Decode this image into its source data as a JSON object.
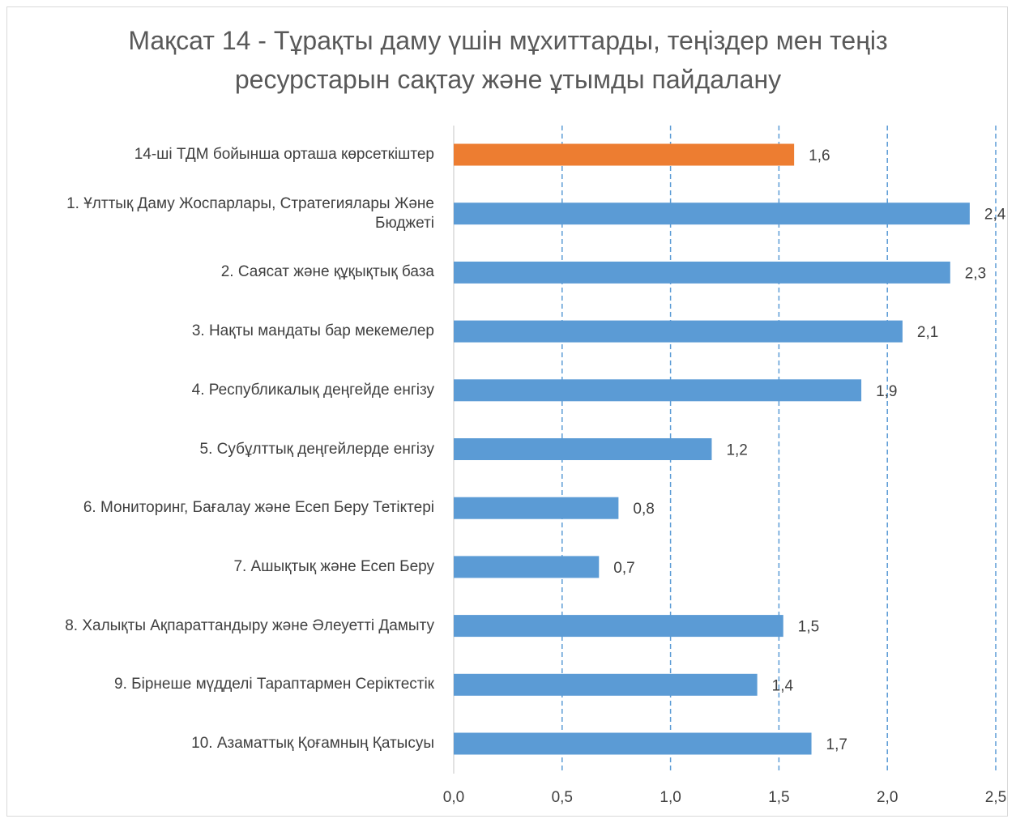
{
  "chart_data": {
    "type": "bar",
    "orientation": "horizontal",
    "title": "Мақсат 14 - Тұрақты даму үшін мұхиттарды, теңіздер мен теңіз ресурстарын сақтау және ұтымды пайдалану",
    "categories": [
      "14-ші ТДМ бойынша орташа көрсеткіштер",
      "1. Ұлттық Даму Жоспарлары, Стратегиялары Және Бюджеті",
      "2. Саясат және құқықтық база",
      "3. Нақты мандаты бар мекемелер",
      "4. Республикалық деңгейде енгізу",
      "5. Субұлттық деңгейлерде енгізу",
      "6. Мониторинг, Бағалау және Есеп Беру Тетіктері",
      "7. Ашықтық және Есеп Беру",
      "8. Халықты Ақпараттандыру және Әлеуетті Дамыту",
      "9. Бірнеше мүдделі Тараптармен Серіктестік",
      "10. Азаматтық Қоғамның Қатысуы"
    ],
    "values": [
      1.57,
      2.38,
      2.29,
      2.07,
      1.88,
      1.19,
      0.76,
      0.67,
      1.52,
      1.4,
      1.65
    ],
    "value_labels": [
      "1,6",
      "2,4",
      "2,3",
      "2,1",
      "1,9",
      "1,2",
      "0,8",
      "0,7",
      "1,5",
      "1,4",
      "1,7"
    ],
    "colors": [
      "#ed7d31",
      "#5b9bd5",
      "#5b9bd5",
      "#5b9bd5",
      "#5b9bd5",
      "#5b9bd5",
      "#5b9bd5",
      "#5b9bd5",
      "#5b9bd5",
      "#5b9bd5",
      "#5b9bd5"
    ],
    "xlim": [
      0,
      2.5
    ],
    "xticks": [
      {
        "value": 0,
        "label": "0,0"
      },
      {
        "value": 0.5,
        "label": "0,5"
      },
      {
        "value": 1,
        "label": "1,0"
      },
      {
        "value": 1.5,
        "label": "1,5"
      },
      {
        "value": 2,
        "label": "2,0"
      },
      {
        "value": 2.5,
        "label": "2,5"
      }
    ],
    "grid": true
  }
}
